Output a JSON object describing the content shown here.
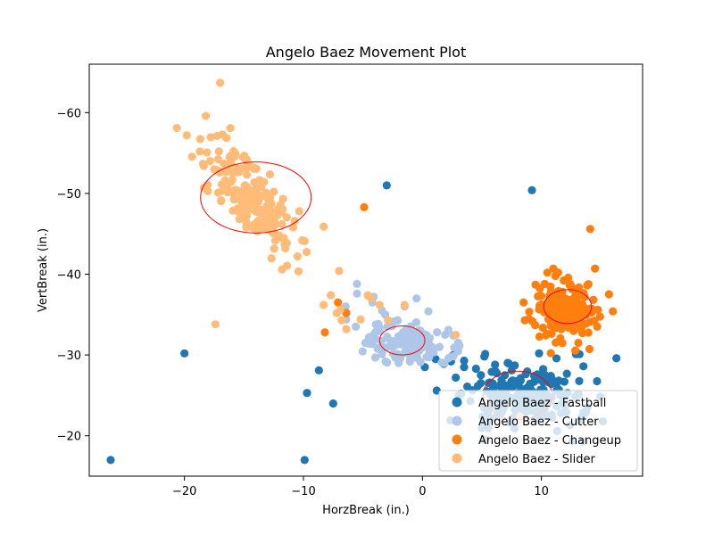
{
  "chart_data": {
    "type": "scatter",
    "title": "Angelo Baez Movement Plot",
    "xlabel": "HorzBreak (in.)",
    "ylabel": "VertBreak (in.)",
    "xlim": [
      -28,
      18.5
    ],
    "ylim": [
      -66,
      -15
    ],
    "xticks": [
      -20,
      -10,
      0,
      10
    ],
    "yticks": [
      -60,
      -50,
      -40,
      -30,
      -20
    ],
    "grid": false,
    "legend_position": "lower-right",
    "ellipse_color": "#ff0000",
    "series": [
      {
        "name": "Angelo Baez - Fastball",
        "color": "#1f77b4",
        "cluster": {
          "center": [
            8.5,
            -25
          ],
          "spread": [
            2.3,
            1.8
          ],
          "corr": 0,
          "n": 180,
          "seed": 11
        },
        "points": [
          [
            -26.2,
            -17
          ],
          [
            -9.9,
            -17
          ],
          [
            -20,
            -30.2
          ],
          [
            -9.7,
            -25.3
          ],
          [
            -8.7,
            -28.1
          ],
          [
            -7.5,
            -24
          ],
          [
            -3.0,
            -51
          ],
          [
            9.2,
            -50.4
          ],
          [
            16.3,
            -29.6
          ],
          [
            12.6,
            -19.3
          ],
          [
            13.5,
            -19.3
          ],
          [
            13.2,
            -21.8
          ],
          [
            12.9,
            -30.1
          ],
          [
            13.2,
            -30.1
          ],
          [
            5.3,
            -19.5
          ],
          [
            1.2,
            -25.6
          ],
          [
            2.8,
            -27.2
          ],
          [
            3.5,
            -28.5
          ],
          [
            4.5,
            -28.3
          ],
          [
            0.2,
            -28.5
          ],
          [
            1.8,
            -28.9
          ],
          [
            2.4,
            -29.2
          ],
          [
            -0.5,
            -29.8
          ],
          [
            1.1,
            -29.5
          ],
          [
            2.6,
            -30
          ],
          [
            3.5,
            -29.3
          ],
          [
            5.2,
            -29.8
          ],
          [
            9.8,
            -30.2
          ],
          [
            6.1,
            -28.8
          ],
          [
            7.5,
            -28.1
          ],
          [
            10.3,
            -27.5
          ]
        ],
        "ellipse": {
          "cx": 8.0,
          "cy": -25.0,
          "w": 5.8,
          "h": 6.0
        }
      },
      {
        "name": "Angelo Baez - Cutter",
        "color": "#aec7e8",
        "cluster": {
          "center": [
            -1.3,
            -31.5
          ],
          "spread": [
            2.0,
            1.5
          ],
          "corr": 0.35,
          "n": 110,
          "seed": 23
        },
        "points": [
          [
            -5.5,
            -38.8
          ],
          [
            -4.1,
            -37.2
          ],
          [
            -3.4,
            -35.5
          ],
          [
            -2.1,
            -34.3
          ],
          [
            -0.5,
            -37
          ],
          [
            0.5,
            -35.4
          ],
          [
            1.9,
            -32.5
          ],
          [
            3.0,
            -30.5
          ],
          [
            2.6,
            -32.4
          ],
          [
            -5.6,
            -33.5
          ],
          [
            -6.4,
            -34.4
          ],
          [
            -4.5,
            -32
          ],
          [
            -3.4,
            -30.1
          ],
          [
            -6.7,
            -35.7
          ],
          [
            -4.8,
            -31.5
          ],
          [
            -3.1,
            -29.2
          ],
          [
            -2.0,
            -29
          ],
          [
            0.6,
            -30.3
          ],
          [
            -1.5,
            -36
          ],
          [
            -4.2,
            -36.5
          ],
          [
            -5.5,
            -37.6
          ],
          [
            -2.6,
            -31.5
          ],
          [
            -3.6,
            -33
          ]
        ],
        "ellipse": {
          "cx": -1.7,
          "cy": -31.8,
          "w": 3.8,
          "h": 3.6
        }
      },
      {
        "name": "Angelo Baez - Changeup",
        "color": "#ff7f0e",
        "cluster": {
          "center": [
            12.2,
            -35.5
          ],
          "spread": [
            1.2,
            1.7
          ],
          "corr": 0,
          "n": 190,
          "seed": 37
        },
        "points": [
          [
            -4.9,
            -48.3
          ],
          [
            14.1,
            -45.6
          ],
          [
            14.5,
            -40.7
          ],
          [
            16,
            -35.4
          ],
          [
            9.5,
            -38.7
          ],
          [
            8.5,
            -36.5
          ],
          [
            8.6,
            -34.3
          ],
          [
            -8.2,
            -32.8
          ],
          [
            -6.4,
            -35.2
          ],
          [
            -7.1,
            -36.5
          ],
          [
            10.5,
            -40.2
          ],
          [
            11.0,
            -40.7
          ],
          [
            13.1,
            -31.5
          ]
        ],
        "ellipse": {
          "cx": 12.2,
          "cy": -36.0,
          "w": 4.0,
          "h": 4.2
        }
      },
      {
        "name": "Angelo Baez - Slider",
        "color": "#ffbb78",
        "cluster": {
          "center": [
            -14.5,
            -49.5
          ],
          "spread": [
            1.8,
            3.2
          ],
          "corr": 0.7,
          "n": 180,
          "seed": 53
        },
        "points": [
          [
            -17.4,
            -33.8
          ],
          [
            -17,
            -63.7
          ],
          [
            -19.8,
            -57.2
          ],
          [
            -18.2,
            -59.6
          ],
          [
            -18.7,
            -55.2
          ],
          [
            -10.5,
            -42.2
          ],
          [
            -9.9,
            -44.1
          ],
          [
            -10.1,
            -44.2
          ],
          [
            -11.8,
            -46.2
          ],
          [
            -8.3,
            -45.9
          ],
          [
            -7.0,
            -40.4
          ],
          [
            -8.3,
            -36.2
          ],
          [
            -7.7,
            -37.4
          ],
          [
            -6.9,
            -35.6
          ],
          [
            -6.8,
            -34.3
          ],
          [
            -7.2,
            -35.2
          ],
          [
            -6.4,
            -33.2
          ],
          [
            -4.6,
            -37.4
          ],
          [
            -2.9,
            -34.3
          ],
          [
            -1.5,
            -36.2
          ],
          [
            -3.6,
            -36.2
          ],
          [
            -5.2,
            -34.4
          ],
          [
            -4.3,
            -37
          ],
          [
            2.8,
            -32.5
          ],
          [
            8.2,
            -22.4
          ],
          [
            -17.1,
            -55.2
          ],
          [
            -16.8,
            -57.3
          ],
          [
            -16.1,
            -54.3
          ]
        ],
        "ellipse": {
          "cx": -14.0,
          "cy": -49.5,
          "w": 9.3,
          "h": 8.8
        }
      }
    ]
  }
}
